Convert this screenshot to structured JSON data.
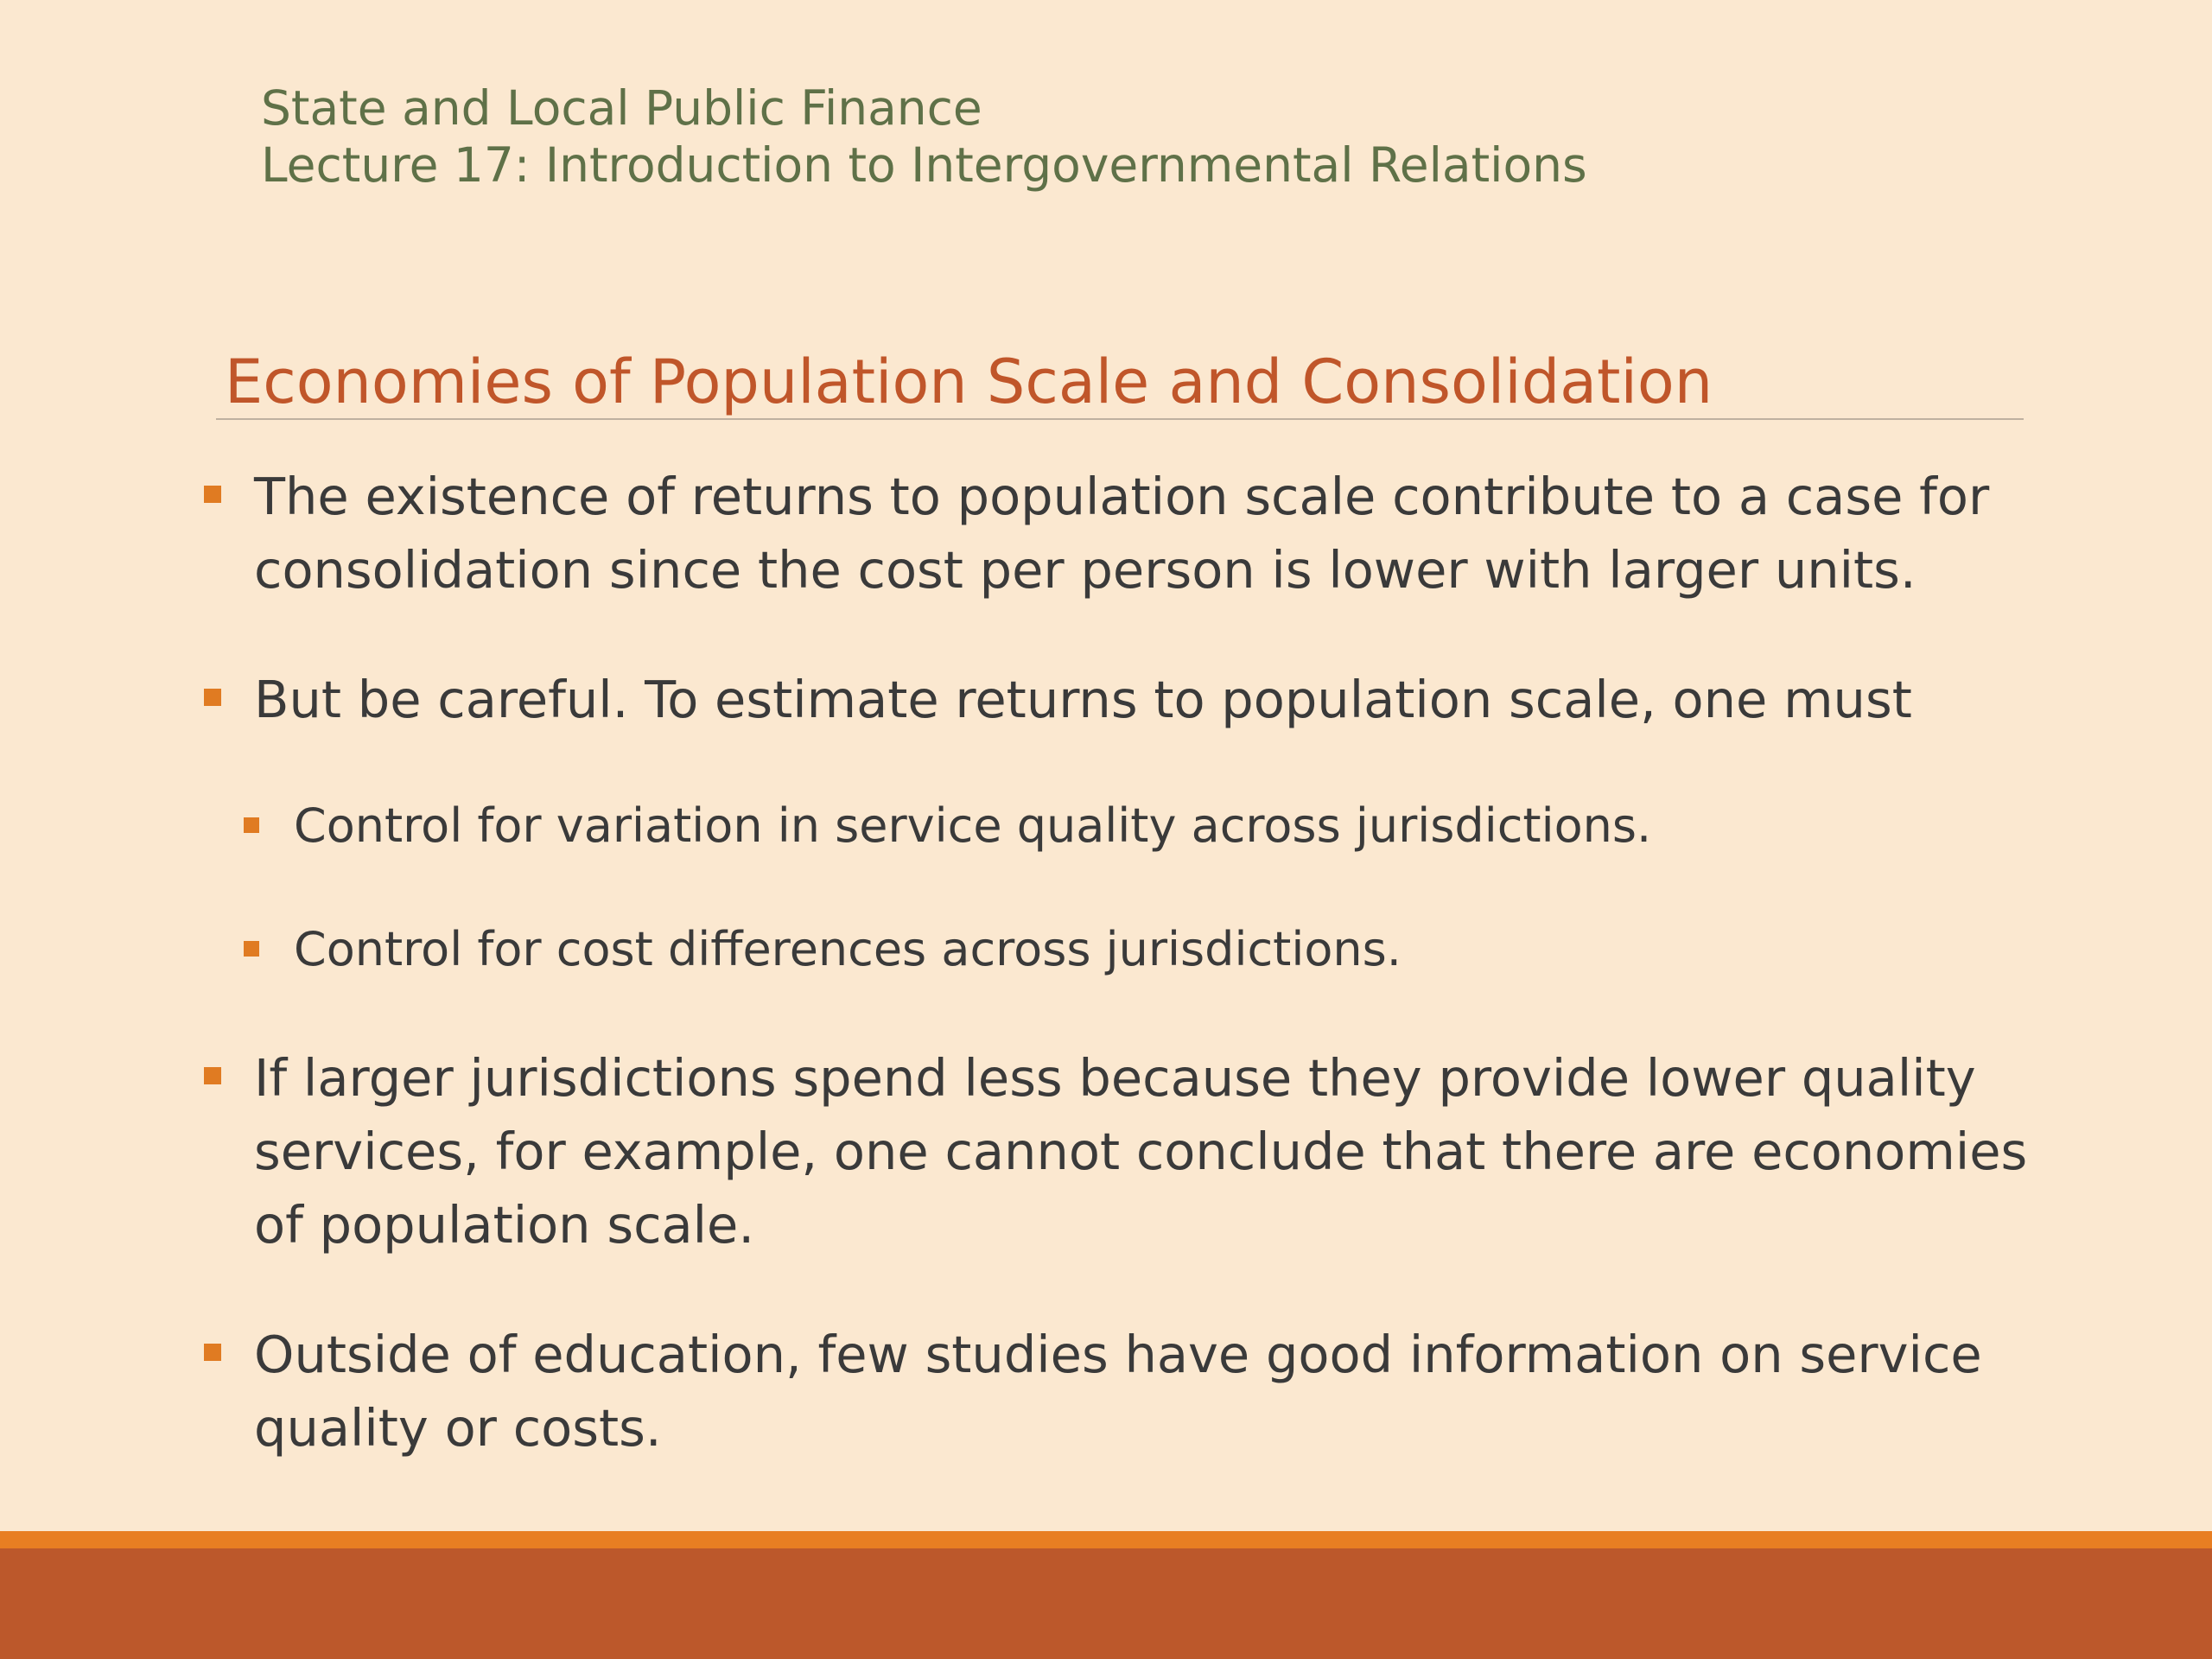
{
  "header": {
    "line1": "State and Local Public Finance",
    "line2": "Lecture 17: Introduction to Intergovernmental Relations"
  },
  "slide_title": "Economies of Population Scale and Consolidation",
  "bullets": {
    "b1_line1": "The existence of returns to population scale contribute to a case for",
    "b1_line2": "consolidation since the cost per person is lower with larger units.",
    "b2_line1": "But be careful.  To estimate returns to population scale, one must",
    "b2_sub1": "Control for variation in service quality across jurisdictions.",
    "b2_sub2": "Control for cost differences across jurisdictions.",
    "b3_line1": "If larger jurisdictions spend less because they provide lower quality",
    "b3_line2": "services, for example, one cannot conclude that there are economies",
    "b3_line3": "of population scale.",
    "b4_line1": "Outside of education, few studies have good information on service",
    "b4_line2": "quality or costs."
  },
  "colors": {
    "background": "#fbe8d0",
    "header_text": "#5f7148",
    "title_text": "#c0562a",
    "body_text": "#3a3a3a",
    "bullet_marker": "#e07b22",
    "footer_stripe": "#e87e22",
    "footer_band": "#bc582b"
  }
}
